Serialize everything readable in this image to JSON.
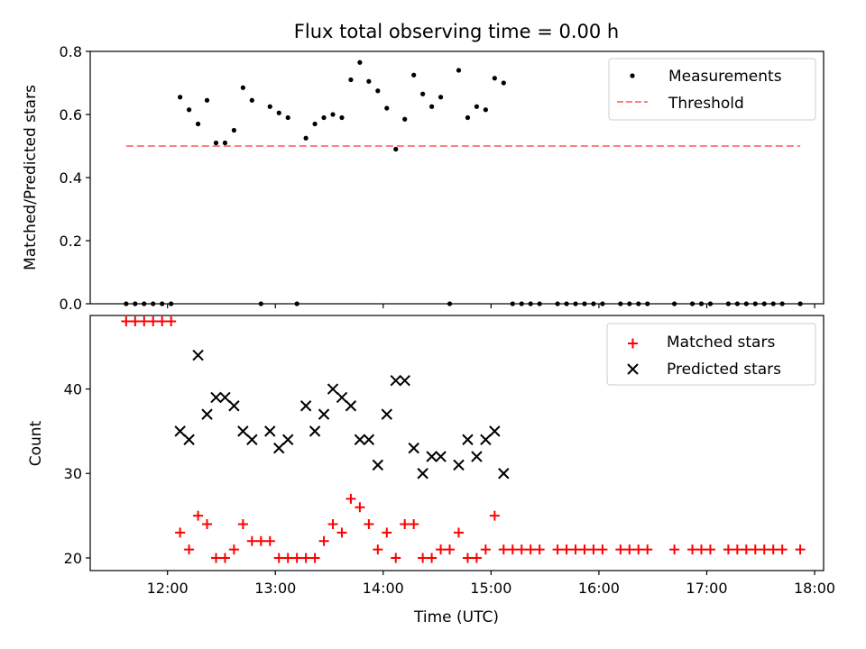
{
  "chart_data": [
    {
      "type": "scatter",
      "title": "Flux total observing time = 0.00 h",
      "ylabel": "Matched/Predicted stars",
      "xlabel": "",
      "ylim": [
        0,
        0.8
      ],
      "yticks": [
        0.0,
        0.2,
        0.4,
        0.6,
        0.8
      ],
      "yticklabels": [
        "0.0",
        "0.2",
        "0.4",
        "0.6",
        "0.8"
      ],
      "grid": false,
      "legend_position": "top-right",
      "series": [
        {
          "name": "Measurements",
          "marker": "dot",
          "color": "#000000",
          "points": [
            [
              "11:37",
              0.0
            ],
            [
              "11:42",
              0.0
            ],
            [
              "11:47",
              0.0
            ],
            [
              "11:52",
              0.0
            ],
            [
              "11:57",
              0.0
            ],
            [
              "12:02",
              0.0
            ],
            [
              "12:07",
              0.655
            ],
            [
              "12:12",
              0.615
            ],
            [
              "12:17",
              0.57
            ],
            [
              "12:22",
              0.645
            ],
            [
              "12:27",
              0.51
            ],
            [
              "12:32",
              0.51
            ],
            [
              "12:37",
              0.55
            ],
            [
              "12:42",
              0.685
            ],
            [
              "12:47",
              0.645
            ],
            [
              "12:52",
              0.0
            ],
            [
              "12:57",
              0.625
            ],
            [
              "13:02",
              0.605
            ],
            [
              "13:07",
              0.59
            ],
            [
              "13:12",
              0.0
            ],
            [
              "13:17",
              0.525
            ],
            [
              "13:22",
              0.57
            ],
            [
              "13:27",
              0.59
            ],
            [
              "13:32",
              0.6
            ],
            [
              "13:37",
              0.59
            ],
            [
              "13:42",
              0.71
            ],
            [
              "13:47",
              0.765
            ],
            [
              "13:52",
              0.705
            ],
            [
              "13:57",
              0.675
            ],
            [
              "14:02",
              0.62
            ],
            [
              "14:07",
              0.49
            ],
            [
              "14:12",
              0.585
            ],
            [
              "14:17",
              0.725
            ],
            [
              "14:22",
              0.665
            ],
            [
              "14:27",
              0.625
            ],
            [
              "14:32",
              0.655
            ],
            [
              "14:37",
              0.0
            ],
            [
              "14:42",
              0.74
            ],
            [
              "14:47",
              0.59
            ],
            [
              "14:52",
              0.625
            ],
            [
              "14:57",
              0.615
            ],
            [
              "15:02",
              0.715
            ],
            [
              "15:07",
              0.7
            ],
            [
              "15:12",
              0.0
            ],
            [
              "15:17",
              0.0
            ],
            [
              "15:22",
              0.0
            ],
            [
              "15:27",
              0.0
            ],
            [
              "15:37",
              0.0
            ],
            [
              "15:42",
              0.0
            ],
            [
              "15:47",
              0.0
            ],
            [
              "15:52",
              0.0
            ],
            [
              "15:57",
              0.0
            ],
            [
              "16:02",
              0.0
            ],
            [
              "16:12",
              0.0
            ],
            [
              "16:17",
              0.0
            ],
            [
              "16:22",
              0.0
            ],
            [
              "16:27",
              0.0
            ],
            [
              "16:42",
              0.0
            ],
            [
              "16:52",
              0.0
            ],
            [
              "16:57",
              0.0
            ],
            [
              "17:02",
              0.0
            ],
            [
              "17:12",
              0.0
            ],
            [
              "17:17",
              0.0
            ],
            [
              "17:22",
              0.0
            ],
            [
              "17:27",
              0.0
            ],
            [
              "17:32",
              0.0
            ],
            [
              "17:37",
              0.0
            ],
            [
              "17:42",
              0.0
            ],
            [
              "17:52",
              0.0
            ]
          ]
        },
        {
          "name": "Threshold",
          "marker": "dashed-line",
          "color": "#ff7f7f",
          "points": [
            [
              "11:37",
              0.5
            ],
            [
              "17:52",
              0.5
            ]
          ]
        }
      ]
    },
    {
      "type": "scatter",
      "title": "",
      "xlabel": "Time (UTC)",
      "ylabel": "Count",
      "ylim": [
        18.5,
        48.7
      ],
      "yticks": [
        20,
        30,
        40
      ],
      "yticklabels": [
        "20",
        "30",
        "40"
      ],
      "x_range": [
        "11:17",
        "18:05"
      ],
      "xticks": [
        "12:00",
        "13:00",
        "14:00",
        "15:00",
        "16:00",
        "17:00",
        "18:00"
      ],
      "xticklabels": [
        "12:00",
        "13:00",
        "14:00",
        "15:00",
        "16:00",
        "17:00",
        "18:00"
      ],
      "grid": false,
      "legend_position": "top-right",
      "series": [
        {
          "name": "Matched stars",
          "marker": "plus",
          "color": "#ff0000",
          "points": [
            [
              "11:37",
              48
            ],
            [
              "11:42",
              48
            ],
            [
              "11:47",
              48
            ],
            [
              "11:52",
              48
            ],
            [
              "11:57",
              48
            ],
            [
              "12:02",
              48
            ],
            [
              "12:07",
              23
            ],
            [
              "12:12",
              21
            ],
            [
              "12:17",
              25
            ],
            [
              "12:22",
              24
            ],
            [
              "12:27",
              20
            ],
            [
              "12:32",
              20
            ],
            [
              "12:37",
              21
            ],
            [
              "12:42",
              24
            ],
            [
              "12:47",
              22
            ],
            [
              "12:52",
              22
            ],
            [
              "12:57",
              22
            ],
            [
              "13:02",
              20
            ],
            [
              "13:07",
              20
            ],
            [
              "13:12",
              20
            ],
            [
              "13:17",
              20
            ],
            [
              "13:22",
              20
            ],
            [
              "13:27",
              22
            ],
            [
              "13:32",
              24
            ],
            [
              "13:37",
              23
            ],
            [
              "13:42",
              27
            ],
            [
              "13:47",
              26
            ],
            [
              "13:52",
              24
            ],
            [
              "13:57",
              21
            ],
            [
              "14:02",
              23
            ],
            [
              "14:07",
              20
            ],
            [
              "14:12",
              24
            ],
            [
              "14:17",
              24
            ],
            [
              "14:22",
              20
            ],
            [
              "14:27",
              20
            ],
            [
              "14:32",
              21
            ],
            [
              "14:37",
              21
            ],
            [
              "14:42",
              23
            ],
            [
              "14:47",
              20
            ],
            [
              "14:52",
              20
            ],
            [
              "14:57",
              21
            ],
            [
              "15:02",
              25
            ],
            [
              "15:07",
              21
            ],
            [
              "15:12",
              21
            ],
            [
              "15:17",
              21
            ],
            [
              "15:22",
              21
            ],
            [
              "15:27",
              21
            ],
            [
              "15:37",
              21
            ],
            [
              "15:42",
              21
            ],
            [
              "15:47",
              21
            ],
            [
              "15:52",
              21
            ],
            [
              "15:57",
              21
            ],
            [
              "16:02",
              21
            ],
            [
              "16:12",
              21
            ],
            [
              "16:17",
              21
            ],
            [
              "16:22",
              21
            ],
            [
              "16:27",
              21
            ],
            [
              "16:42",
              21
            ],
            [
              "16:52",
              21
            ],
            [
              "16:57",
              21
            ],
            [
              "17:02",
              21
            ],
            [
              "17:12",
              21
            ],
            [
              "17:17",
              21
            ],
            [
              "17:22",
              21
            ],
            [
              "17:27",
              21
            ],
            [
              "17:32",
              21
            ],
            [
              "17:37",
              21
            ],
            [
              "17:42",
              21
            ],
            [
              "17:52",
              21
            ]
          ]
        },
        {
          "name": "Predicted stars",
          "marker": "x",
          "color": "#000000",
          "points": [
            [
              "12:07",
              35
            ],
            [
              "12:12",
              34
            ],
            [
              "12:17",
              44
            ],
            [
              "12:22",
              37
            ],
            [
              "12:27",
              39
            ],
            [
              "12:32",
              39
            ],
            [
              "12:37",
              38
            ],
            [
              "12:42",
              35
            ],
            [
              "12:47",
              34
            ],
            [
              "12:57",
              35
            ],
            [
              "13:02",
              33
            ],
            [
              "13:07",
              34
            ],
            [
              "13:17",
              38
            ],
            [
              "13:22",
              35
            ],
            [
              "13:27",
              37
            ],
            [
              "13:32",
              40
            ],
            [
              "13:37",
              39
            ],
            [
              "13:42",
              38
            ],
            [
              "13:47",
              34
            ],
            [
              "13:52",
              34
            ],
            [
              "13:57",
              31
            ],
            [
              "14:02",
              37
            ],
            [
              "14:07",
              41
            ],
            [
              "14:12",
              41
            ],
            [
              "14:17",
              33
            ],
            [
              "14:22",
              30
            ],
            [
              "14:27",
              32
            ],
            [
              "14:32",
              32
            ],
            [
              "14:42",
              31
            ],
            [
              "14:47",
              34
            ],
            [
              "14:52",
              32
            ],
            [
              "14:57",
              34
            ],
            [
              "15:02",
              35
            ],
            [
              "15:07",
              30
            ]
          ]
        }
      ]
    }
  ]
}
